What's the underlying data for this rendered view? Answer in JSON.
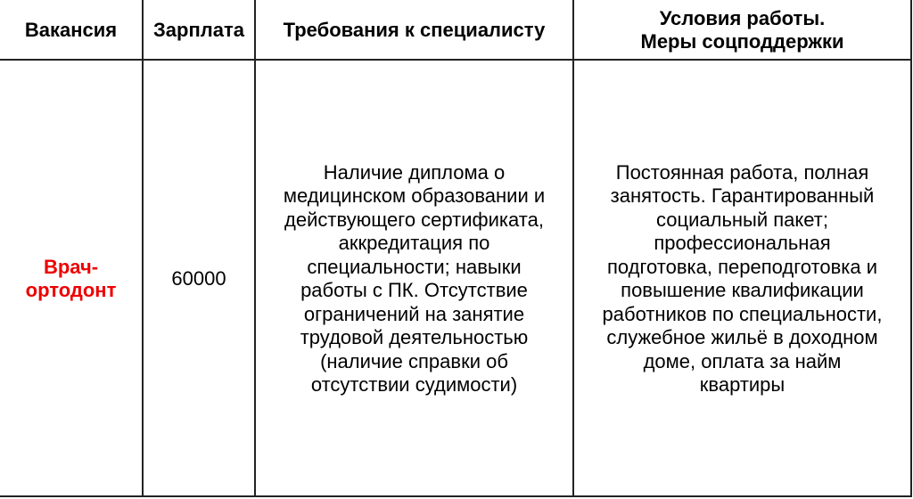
{
  "headers": [
    "Вакансия",
    "Зарплата",
    "Требования к специалисту",
    [
      "Условия работы.",
      "Меры соцподдержки"
    ]
  ],
  "accent_color": "#ee0000",
  "row": {
    "vacancy": [
      "Врач-",
      "ортодонт"
    ],
    "salary": "60000",
    "requirements": [
      "Наличие диплома о",
      "медицинском образовании и",
      "действующего сертификата,",
      "аккредитация по",
      "специальности; навыки",
      "работы с ПК. Отсутствие",
      "ограничений на занятие",
      "трудовой деятельностью",
      "(наличие справки об",
      "отсутствии судимости)"
    ],
    "conditions": [
      "Постоянная работа, полная",
      "занятость. Гарантированный",
      "социальный пакет;",
      "профессиональная",
      "подготовка, переподготовка и",
      "повышение квалификации",
      "работников по специальности,",
      "служебное жильё в доходном",
      "доме, оплата за найм",
      "квартиры"
    ]
  }
}
